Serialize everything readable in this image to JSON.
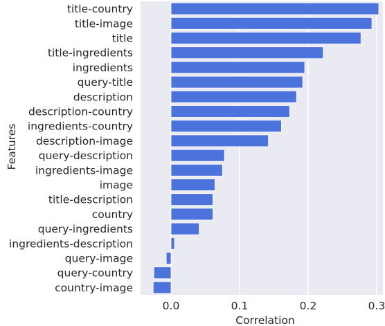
{
  "chart_data": {
    "type": "bar",
    "orientation": "horizontal",
    "xlabel": "Correlation",
    "ylabel": "Features",
    "xlim": [
      -0.032,
      0.305
    ],
    "xticks": [
      0.0,
      0.1,
      0.2,
      0.3
    ],
    "xtick_labels": [
      "0.0",
      "0.1",
      "0.2",
      "0.3"
    ],
    "grid": "vertical",
    "bar_color": "#4c72dc",
    "background": "#eaeaf2",
    "categories": [
      "title-country",
      "title-image",
      "title",
      "title-ingredients",
      "ingredients",
      "query-title",
      "description",
      "description-country",
      "ingredients-country",
      "description-image",
      "query-description",
      "ingredients-image",
      "image",
      "title-description",
      "country",
      "query-ingredients",
      "ingredients-description",
      "query-image",
      "query-country",
      "country-image"
    ],
    "values": [
      0.303,
      0.293,
      0.277,
      0.222,
      0.195,
      0.192,
      0.183,
      0.173,
      0.161,
      0.142,
      0.078,
      0.075,
      0.064,
      0.061,
      0.061,
      0.041,
      0.005,
      -0.007,
      -0.025,
      -0.026
    ]
  }
}
